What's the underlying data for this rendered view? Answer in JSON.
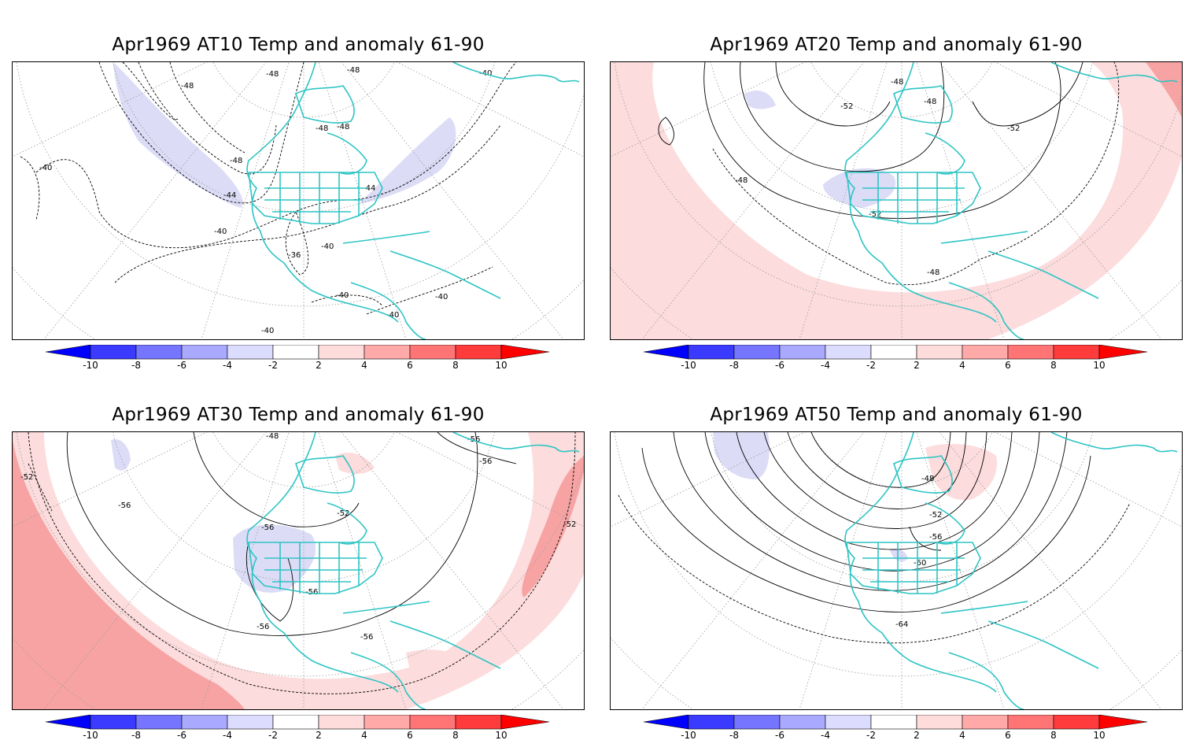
{
  "panels": [
    {
      "title": "Apr1969 AT10 Temp and anomaly 61-90",
      "contour_labels": [
        "-48",
        "-48",
        "-48",
        "-48",
        "-48",
        "-48",
        "-40",
        "-40",
        "-44",
        "-44",
        "-40",
        "-40",
        "-36",
        "-40",
        "-40",
        "-40",
        "-40"
      ],
      "shading": [
        {
          "sign": "negative",
          "level": "-2 to -4"
        }
      ]
    },
    {
      "title": "Apr1969 AT20 Temp and anomaly 61-90",
      "contour_labels": [
        "-48",
        "-48",
        "-52",
        "-52",
        "-48",
        "-52",
        "-48"
      ],
      "shading": [
        {
          "sign": "positive",
          "level": "2 to 4"
        },
        {
          "sign": "positive",
          "level": "4 to 6"
        },
        {
          "sign": "negative",
          "level": "-2 to -4"
        }
      ]
    },
    {
      "title": "Apr1969 AT30 Temp and anomaly 61-90",
      "contour_labels": [
        "-48",
        "-56",
        "-56",
        "-52",
        "-56",
        "-52",
        "-56",
        "-56",
        "-56",
        "-56",
        "-52"
      ],
      "shading": [
        {
          "sign": "positive",
          "level": "2 to 4"
        },
        {
          "sign": "positive",
          "level": "4 to 6"
        },
        {
          "sign": "negative",
          "level": "-2 to -4"
        }
      ]
    },
    {
      "title": "Apr1969 AT50 Temp and anomaly 61-90",
      "contour_labels": [
        "-48",
        "-52",
        "-56",
        "-60",
        "-64"
      ],
      "shading": [
        {
          "sign": "positive",
          "level": "2 to 4"
        },
        {
          "sign": "negative",
          "level": "-2 to -4"
        }
      ]
    }
  ],
  "colorbar": {
    "tick_labels": [
      "-10",
      "-8",
      "-6",
      "-4",
      "-2",
      "2",
      "4",
      "6",
      "8",
      "10"
    ],
    "colors": [
      "#0000ff",
      "#3b3bff",
      "#7575ff",
      "#a9a9ff",
      "#dcdcff",
      "#ffffff",
      "#ffdcdc",
      "#ffa9a9",
      "#ff7575",
      "#ff3b3b",
      "#ff0000"
    ]
  },
  "colors": {
    "coastline": "#2ec4c4",
    "neg_light": "#dcdcf7",
    "pos_light": "#fcdcdc",
    "pos_mid": "#f7a3a3",
    "contour": "#000000",
    "grid": "#9a9a9a"
  }
}
